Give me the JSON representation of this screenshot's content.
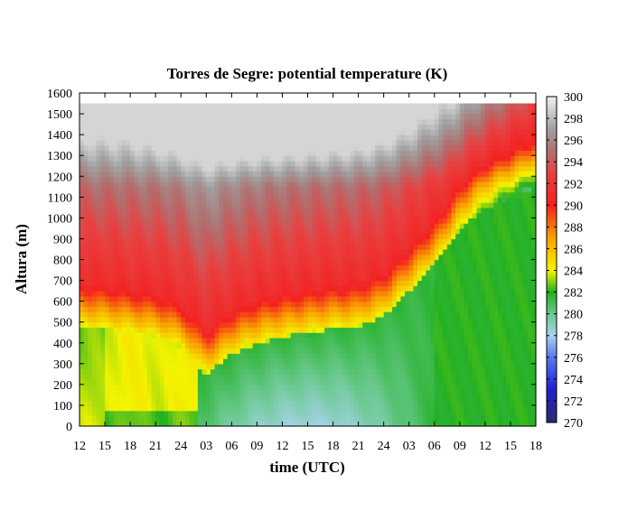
{
  "chart_data": {
    "type": "heatmap",
    "title": "Torres de Segre: potential temperature (K)",
    "xlabel": "time (UTC)",
    "ylabel": "Altura (m)",
    "x_tick_labels": [
      "12",
      "15",
      "18",
      "21",
      "24",
      "03",
      "06",
      "09",
      "12",
      "15",
      "18",
      "21",
      "24",
      "03",
      "06",
      "09",
      "12",
      "15",
      "18"
    ],
    "x_range_hours": [
      0,
      54
    ],
    "ylim": [
      0,
      1600
    ],
    "y_ticks": [
      0,
      100,
      200,
      300,
      400,
      500,
      600,
      700,
      800,
      900,
      1000,
      1100,
      1200,
      1300,
      1400,
      1500,
      1600
    ],
    "data_top_height": 1550,
    "colorbar": {
      "range": [
        270,
        300
      ],
      "ticks": [
        270,
        272,
        274,
        276,
        278,
        280,
        282,
        284,
        286,
        288,
        290,
        292,
        294,
        296,
        298,
        300
      ],
      "colors": [
        {
          "value": 270,
          "color": "#2a2a6e"
        },
        {
          "value": 273,
          "color": "#2020d0"
        },
        {
          "value": 276,
          "color": "#5a78ee"
        },
        {
          "value": 278,
          "color": "#a8d4ee"
        },
        {
          "value": 280,
          "color": "#68c88c"
        },
        {
          "value": 282,
          "color": "#22b022"
        },
        {
          "value": 284,
          "color": "#f4f400"
        },
        {
          "value": 287,
          "color": "#f8a000"
        },
        {
          "value": 290,
          "color": "#f42020"
        },
        {
          "value": 293,
          "color": "#e84040"
        },
        {
          "value": 295,
          "color": "#b07070"
        },
        {
          "value": 297,
          "color": "#a0a0a0"
        },
        {
          "value": 300,
          "color": "#f0f0f0"
        }
      ]
    },
    "boundary_layer_top_m": [
      {
        "t": 0,
        "h": 480
      },
      {
        "t": 3,
        "h": 470
      },
      {
        "t": 6,
        "h": 450
      },
      {
        "t": 9,
        "h": 430
      },
      {
        "t": 12,
        "h": 380
      },
      {
        "t": 15,
        "h": 250
      },
      {
        "t": 18,
        "h": 350
      },
      {
        "t": 21,
        "h": 400
      },
      {
        "t": 24,
        "h": 430
      },
      {
        "t": 27,
        "h": 450
      },
      {
        "t": 30,
        "h": 470
      },
      {
        "t": 33,
        "h": 480
      },
      {
        "t": 36,
        "h": 530
      },
      {
        "t": 39,
        "h": 650
      },
      {
        "t": 42,
        "h": 780
      },
      {
        "t": 45,
        "h": 950
      },
      {
        "t": 48,
        "h": 1050
      },
      {
        "t": 51,
        "h": 1100
      },
      {
        "t": 54,
        "h": 1150
      }
    ]
  }
}
